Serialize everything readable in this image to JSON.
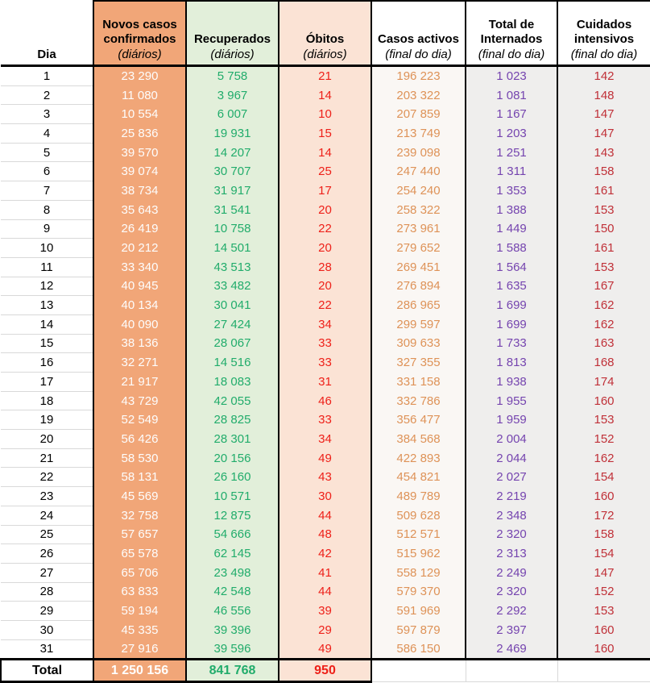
{
  "chart_data": {
    "type": "table",
    "columns": [
      {
        "key": "dia",
        "title": "Dia",
        "subtitle": ""
      },
      {
        "key": "novos",
        "title": "Novos casos confirmados",
        "subtitle": "(diários)"
      },
      {
        "key": "recuperados",
        "title": "Recuperados",
        "subtitle": "(diários)"
      },
      {
        "key": "obitos",
        "title": "Óbitos",
        "subtitle": "(diários)"
      },
      {
        "key": "activos",
        "title": "Casos activos",
        "subtitle": "(final do dia)"
      },
      {
        "key": "internados",
        "title": "Total de Internados",
        "subtitle": "(final do dia)"
      },
      {
        "key": "uci",
        "title": "Cuidados intensivos",
        "subtitle": "(final do dia)"
      }
    ],
    "rows": [
      [
        "1",
        "23 290",
        "5 758",
        "21",
        "196 223",
        "1 023",
        "142"
      ],
      [
        "2",
        "11 080",
        "3 967",
        "14",
        "203 322",
        "1 081",
        "148"
      ],
      [
        "3",
        "10 554",
        "6 007",
        "10",
        "207 859",
        "1 167",
        "147"
      ],
      [
        "4",
        "25 836",
        "19 931",
        "15",
        "213 749",
        "1 203",
        "147"
      ],
      [
        "5",
        "39 570",
        "14 207",
        "14",
        "239 098",
        "1 251",
        "143"
      ],
      [
        "6",
        "39 074",
        "30 707",
        "25",
        "247 440",
        "1 311",
        "158"
      ],
      [
        "7",
        "38 734",
        "31 917",
        "17",
        "254 240",
        "1 353",
        "161"
      ],
      [
        "8",
        "35 643",
        "31 541",
        "20",
        "258 322",
        "1 388",
        "153"
      ],
      [
        "9",
        "26 419",
        "10 758",
        "22",
        "273 961",
        "1 449",
        "150"
      ],
      [
        "10",
        "20 212",
        "14 501",
        "20",
        "279 652",
        "1 588",
        "161"
      ],
      [
        "11",
        "33 340",
        "43 513",
        "28",
        "269 451",
        "1 564",
        "153"
      ],
      [
        "12",
        "40 945",
        "33 482",
        "20",
        "276 894",
        "1 635",
        "167"
      ],
      [
        "13",
        "40 134",
        "30 041",
        "22",
        "286 965",
        "1 699",
        "162"
      ],
      [
        "14",
        "40 090",
        "27 424",
        "34",
        "299 597",
        "1 699",
        "162"
      ],
      [
        "15",
        "38 136",
        "28 067",
        "33",
        "309 633",
        "1 733",
        "163"
      ],
      [
        "16",
        "32 271",
        "14 516",
        "33",
        "327 355",
        "1 813",
        "168"
      ],
      [
        "17",
        "21 917",
        "18 083",
        "31",
        "331 158",
        "1 938",
        "174"
      ],
      [
        "18",
        "43 729",
        "42 055",
        "46",
        "332 786",
        "1 955",
        "160"
      ],
      [
        "19",
        "52 549",
        "28 825",
        "33",
        "356 477",
        "1 959",
        "153"
      ],
      [
        "20",
        "56 426",
        "28 301",
        "34",
        "384 568",
        "2 004",
        "152"
      ],
      [
        "21",
        "58 530",
        "20 156",
        "49",
        "422 893",
        "2 044",
        "162"
      ],
      [
        "22",
        "58 131",
        "26 160",
        "43",
        "454 821",
        "2 027",
        "154"
      ],
      [
        "23",
        "45 569",
        "10 571",
        "30",
        "489 789",
        "2 219",
        "160"
      ],
      [
        "24",
        "32 758",
        "12 875",
        "44",
        "509 628",
        "2 348",
        "172"
      ],
      [
        "25",
        "57 657",
        "54 666",
        "48",
        "512 571",
        "2 320",
        "158"
      ],
      [
        "26",
        "65 578",
        "62 145",
        "42",
        "515 962",
        "2 313",
        "154"
      ],
      [
        "27",
        "65 706",
        "23 498",
        "41",
        "558 129",
        "2 249",
        "147"
      ],
      [
        "28",
        "63 833",
        "42 548",
        "44",
        "579 370",
        "2 320",
        "152"
      ],
      [
        "29",
        "59 194",
        "46 556",
        "39",
        "591 969",
        "2 292",
        "153"
      ],
      [
        "30",
        "45 335",
        "39 396",
        "29",
        "597 879",
        "2 397",
        "160"
      ],
      [
        "31",
        "27 916",
        "39 596",
        "49",
        "586 150",
        "2 469",
        "160"
      ]
    ],
    "total_row": [
      "Total",
      "1 250 156",
      "841 768",
      "950",
      "",
      "",
      ""
    ]
  },
  "colors": {
    "border": "#000000",
    "gridline": "#D9D9D9",
    "novos_bg": "#F1A678",
    "novos_text": "#FDFDFD",
    "recuperados_bg": "#E2EFDA",
    "recuperados_text": "#21AC6B",
    "obitos_bg": "#FBE3D5",
    "obitos_text": "#EE2019",
    "activos_bg": "#FAF7F4",
    "activos_text": "#DE9257",
    "internados_bg": "#EFEEED",
    "internados_text": "#7544AF",
    "uci_bg": "#EFEEED",
    "uci_text": "#C03038"
  }
}
